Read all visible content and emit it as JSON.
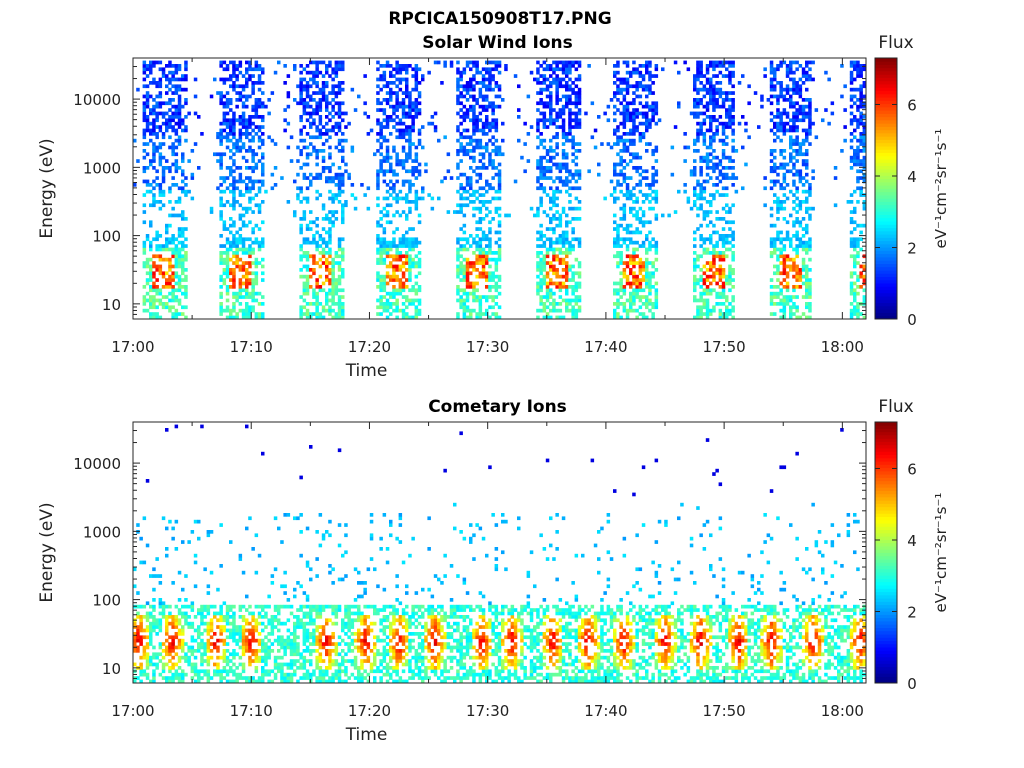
{
  "figure_title": "RPCICA150908T17.PNG",
  "chart_data": [
    {
      "type": "heatmap",
      "title": "Solar Wind Ions",
      "xlabel": "Time",
      "ylabel": "Energy (eV)",
      "x_range": [
        "17:00",
        "18:02"
      ],
      "x_ticks": [
        "17:00",
        "17:10",
        "17:20",
        "17:30",
        "17:40",
        "17:50",
        "18:00"
      ],
      "y_scale": "log",
      "y_range": [
        6,
        40000
      ],
      "y_ticks": [
        "10",
        "100",
        "1000",
        "10000"
      ],
      "colorbar": {
        "title": "Flux",
        "label": "eV⁻¹cm⁻²sr⁻¹s⁻¹",
        "range": [
          0,
          7.3
        ],
        "ticks": [
          "0",
          "2",
          "4",
          "6"
        ],
        "colormap": "jet"
      },
      "bursts_minutes": [
        1.0,
        7.5,
        14.3,
        20.8,
        27.5,
        34.3,
        40.8,
        47.5,
        54.0,
        60.8
      ],
      "burst_width_minutes": 3.5,
      "energy_range_eV": [
        6,
        30000
      ],
      "peak_energy_eV": 30,
      "peak_flux": 6.5,
      "background_flux": 1.8
    },
    {
      "type": "heatmap",
      "title": "Cometary Ions",
      "xlabel": "Time",
      "ylabel": "Energy (eV)",
      "x_range": [
        "17:00",
        "18:02"
      ],
      "x_ticks": [
        "17:00",
        "17:10",
        "17:20",
        "17:30",
        "17:40",
        "17:50",
        "18:00"
      ],
      "y_scale": "log",
      "y_range": [
        6,
        40000
      ],
      "y_ticks": [
        "10",
        "100",
        "1000",
        "10000"
      ],
      "colorbar": {
        "title": "Flux",
        "label": "eV⁻¹cm⁻²sr⁻¹s⁻¹",
        "range": [
          0,
          7.3
        ],
        "ticks": [
          "0",
          "2",
          "4",
          "6"
        ],
        "colormap": "jet"
      },
      "hot_spots_minutes": [
        0.5,
        3.3,
        7.0,
        10.0,
        16.3,
        19.7,
        22.5,
        25.5,
        29.5,
        32.0,
        35.5,
        38.5,
        41.5,
        45.0,
        48.0,
        51.2,
        54.0,
        57.5,
        61.5
      ],
      "hot_spot_energy_eV": 25,
      "peak_flux": 7.0,
      "low_energy_band_eV": [
        6,
        90
      ]
    }
  ]
}
